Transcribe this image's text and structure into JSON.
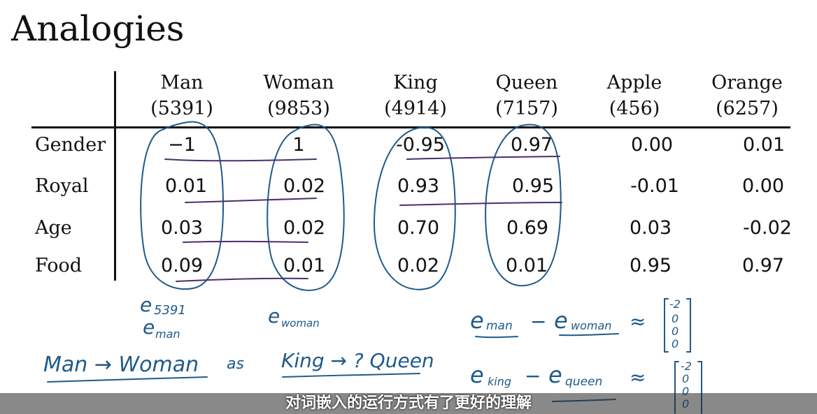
{
  "title": "Analogies",
  "columns": [
    {
      "word": "Man",
      "index": "(5391)"
    },
    {
      "word": "Woman",
      "index": "(9853)"
    },
    {
      "word": "King",
      "index": "(4914)"
    },
    {
      "word": "Queen",
      "index": "(7157)"
    },
    {
      "word": "Apple",
      "index": "(456)"
    },
    {
      "word": "Orange",
      "index": "(6257)"
    }
  ],
  "rows": [
    {
      "label": "Gender",
      "values": [
        "−1",
        "1",
        "-0.95",
        "0.97",
        "0.00",
        "0.01"
      ]
    },
    {
      "label": "Royal",
      "values": [
        "0.01",
        "0.02",
        "0.93",
        "0.95",
        "-0.01",
        "0.00"
      ]
    },
    {
      "label": "Age",
      "values": [
        "0.03",
        "0.02",
        "0.70",
        "0.69",
        "0.03",
        "-0.02"
      ]
    },
    {
      "label": "Food",
      "values": [
        "0.09",
        "0.01",
        "0.02",
        "0.01",
        "0.95",
        "0.97"
      ]
    }
  ],
  "ink_color": "#1f5a8a",
  "underline_color": "#4a2f6e",
  "handwriting": {
    "e5391": "e",
    "e5391_sub": "5391",
    "eman": "e",
    "eman_sub": "man",
    "ewoman": "e",
    "ewoman_sub": "woman",
    "diff1_a": "e",
    "diff1_a_sub": "man",
    "diff1_minus": "−",
    "diff1_b": "e",
    "diff1_b_sub": "woman",
    "approx": "≈",
    "vec1": [
      "-2",
      "0",
      "0",
      "0"
    ],
    "analogy_left": "Man → Woman",
    "analogy_as": "as",
    "analogy_right": "King → ? Queen",
    "diff2_a": "e",
    "diff2_a_sub": "king",
    "diff2_minus": "−",
    "diff2_b": "e",
    "diff2_b_sub": "queen",
    "vec2": [
      "-2",
      "0",
      "0",
      "0"
    ]
  },
  "subtitle": "对词嵌入的运行方式有了更好的理解"
}
